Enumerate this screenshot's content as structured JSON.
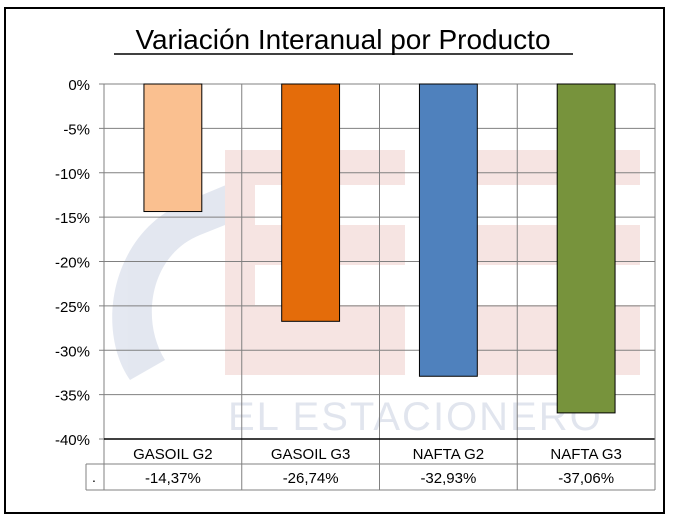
{
  "chart_data": {
    "type": "bar",
    "title": "Variación Interanual por Producto",
    "categories": [
      "GASOIL G2",
      "GASOIL G3",
      "NAFTA G2",
      "NAFTA G3"
    ],
    "values": [
      -14.37,
      -26.74,
      -32.93,
      -37.06
    ],
    "value_labels": [
      "-14,37%",
      "-26,74%",
      "-32,93%",
      "-37,06%"
    ],
    "series_colors": [
      "#FAC090",
      "#E46C0A",
      "#4F81BD",
      "#77933C"
    ],
    "y_ticks": [
      "0%",
      "-5%",
      "-10%",
      "-15%",
      "-20%",
      "-25%",
      "-30%",
      "-35%",
      "-40%"
    ],
    "ylim": [
      -40,
      0
    ],
    "data_table_marker": ".",
    "grid": true,
    "watermark": "EL ESTACIONERO"
  }
}
